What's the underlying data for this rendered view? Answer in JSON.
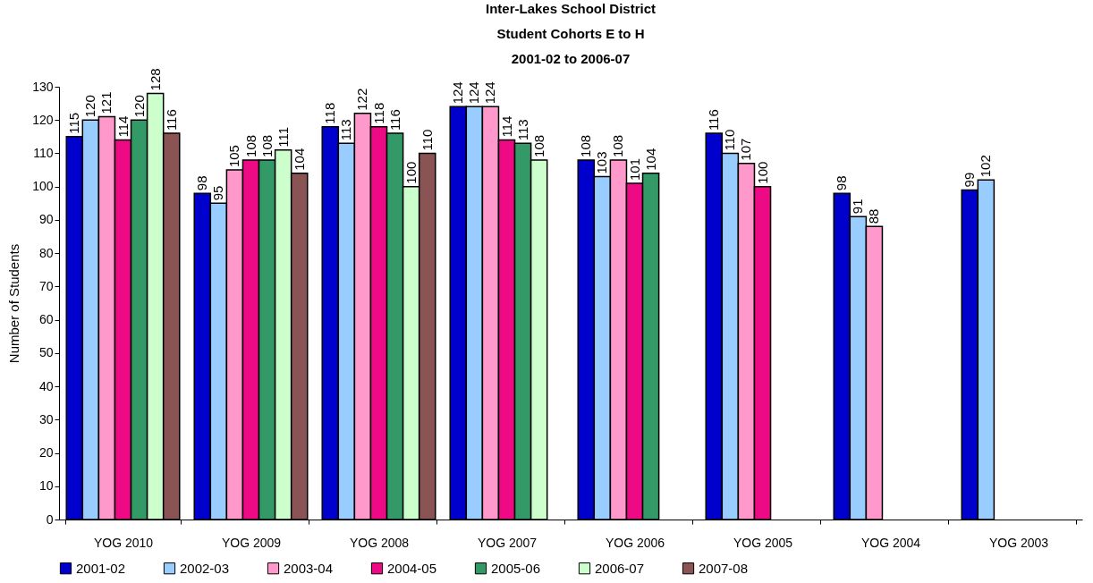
{
  "chart_data": {
    "type": "bar",
    "title": [
      "Inter-Lakes School District",
      "Student Cohorts E to H",
      "2001-02 to 2006-07"
    ],
    "ylabel": "Number of Students",
    "categories": [
      "YOG 2010",
      "YOG 2009",
      "YOG 2008",
      "YOG 2007",
      "YOG 2006",
      "YOG 2005",
      "YOG 2004",
      "YOG 2003"
    ],
    "series": [
      {
        "name": "2001-02",
        "color": "#0000cc",
        "values": [
          115,
          98,
          118,
          124,
          108,
          116,
          98,
          99
        ]
      },
      {
        "name": "2002-03",
        "color": "#99ccff",
        "values": [
          120,
          95,
          113,
          124,
          103,
          110,
          91,
          102
        ]
      },
      {
        "name": "2003-04",
        "color": "#ff99cc",
        "values": [
          121,
          105,
          122,
          124,
          108,
          107,
          88,
          null
        ]
      },
      {
        "name": "2004-05",
        "color": "#ee0a85",
        "values": [
          114,
          108,
          118,
          114,
          101,
          100,
          null,
          null
        ]
      },
      {
        "name": "2005-06",
        "color": "#339966",
        "values": [
          120,
          108,
          116,
          113,
          104,
          null,
          null,
          null
        ]
      },
      {
        "name": "2006-07",
        "color": "#ccffcc",
        "values": [
          128,
          111,
          100,
          108,
          null,
          null,
          null,
          null
        ]
      },
      {
        "name": "2007-08",
        "color": "#8b5454",
        "values": [
          116,
          104,
          110,
          null,
          null,
          null,
          null,
          null
        ]
      }
    ],
    "ylim": [
      0,
      130
    ],
    "yticks": [
      0,
      10,
      20,
      30,
      40,
      50,
      60,
      70,
      80,
      90,
      100,
      110,
      120,
      130
    ],
    "grid": false,
    "legend": "bottom",
    "data_labels": true
  }
}
